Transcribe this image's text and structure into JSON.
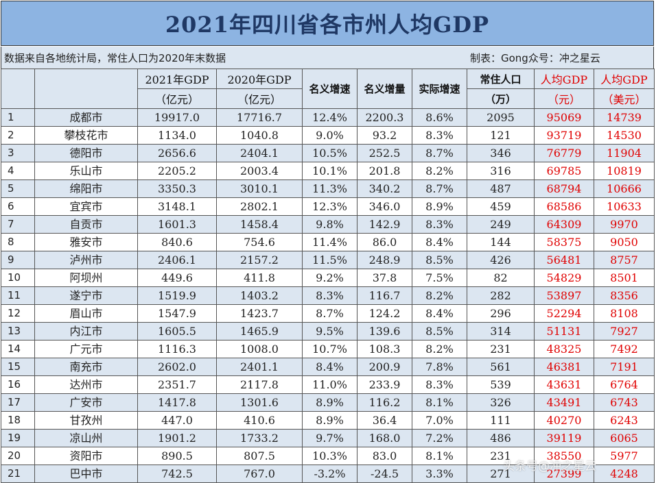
{
  "title": "2021年四川省各市州人均GDP",
  "note": {
    "source": "数据来自各地统计局，常住人口为2020年末数据",
    "credit": "制表：Gong众号：冲之星云"
  },
  "headers": {
    "gdp2021": [
      "2021年GDP",
      "（亿元）"
    ],
    "gdp2020": [
      "2020年GDP",
      "（亿元）"
    ],
    "nominal_growth": "名义增速",
    "nominal_increase": "名义增量",
    "real_growth": "实际增速",
    "population": [
      "常住人口",
      "（万）"
    ],
    "per_capita_cny": [
      "人均GDP",
      "（元）"
    ],
    "per_capita_usd": [
      "人均GDP",
      "（美元）"
    ]
  },
  "rows": [
    [
      "1",
      "成都市",
      "19917.0",
      "17716.7",
      "12.4%",
      "2200.3",
      "8.6%",
      "2095",
      "95069",
      "14739"
    ],
    [
      "2",
      "攀枝花市",
      "1134.0",
      "1040.8",
      "9.0%",
      "93.2",
      "8.3%",
      "121",
      "93719",
      "14530"
    ],
    [
      "3",
      "德阳市",
      "2656.6",
      "2404.1",
      "10.5%",
      "252.5",
      "8.7%",
      "346",
      "76779",
      "11904"
    ],
    [
      "4",
      "乐山市",
      "2205.2",
      "2003.4",
      "10.1%",
      "201.8",
      "8.2%",
      "316",
      "69785",
      "10819"
    ],
    [
      "5",
      "绵阳市",
      "3350.3",
      "3010.1",
      "11.3%",
      "340.2",
      "8.7%",
      "487",
      "68794",
      "10666"
    ],
    [
      "6",
      "宜宾市",
      "3148.1",
      "2802.1",
      "12.3%",
      "346.0",
      "8.9%",
      "459",
      "68586",
      "10633"
    ],
    [
      "7",
      "自贡市",
      "1601.3",
      "1458.4",
      "9.8%",
      "142.9",
      "8.3%",
      "249",
      "64309",
      "9970"
    ],
    [
      "8",
      "雅安市",
      "840.6",
      "754.6",
      "11.4%",
      "86.0",
      "8.4%",
      "144",
      "58375",
      "9050"
    ],
    [
      "9",
      "泸州市",
      "2406.1",
      "2157.2",
      "11.5%",
      "248.9",
      "8.5%",
      "426",
      "56481",
      "8757"
    ],
    [
      "10",
      "阿坝州",
      "449.6",
      "411.8",
      "9.2%",
      "37.8",
      "7.5%",
      "82",
      "54829",
      "8501"
    ],
    [
      "11",
      "遂宁市",
      "1519.9",
      "1403.2",
      "8.3%",
      "116.7",
      "8.2%",
      "282",
      "53897",
      "8356"
    ],
    [
      "12",
      "眉山市",
      "1547.9",
      "1423.7",
      "8.7%",
      "124.2",
      "8.4%",
      "296",
      "52294",
      "8108"
    ],
    [
      "13",
      "内江市",
      "1605.5",
      "1465.9",
      "9.5%",
      "139.6",
      "8.5%",
      "314",
      "51131",
      "7927"
    ],
    [
      "14",
      "广元市",
      "1116.3",
      "1008.0",
      "10.7%",
      "108.3",
      "8.2%",
      "231",
      "48325",
      "7492"
    ],
    [
      "15",
      "南充市",
      "2602.0",
      "2401.1",
      "8.4%",
      "200.9",
      "7.8%",
      "561",
      "46381",
      "7191"
    ],
    [
      "16",
      "达州市",
      "2351.7",
      "2117.8",
      "11.0%",
      "233.9",
      "8.3%",
      "539",
      "43631",
      "6764"
    ],
    [
      "17",
      "广安市",
      "1417.8",
      "1301.6",
      "8.9%",
      "116.2",
      "8.1%",
      "326",
      "43491",
      "6743"
    ],
    [
      "18",
      "甘孜州",
      "447.0",
      "410.6",
      "8.9%",
      "36.4",
      "7.0%",
      "111",
      "40270",
      "6243"
    ],
    [
      "19",
      "凉山州",
      "1901.2",
      "1733.2",
      "9.7%",
      "168.0",
      "7.2%",
      "486",
      "39119",
      "6065"
    ],
    [
      "20",
      "资阳市",
      "890.5",
      "807.5",
      "10.3%",
      "83.0",
      "8.1%",
      "231",
      "38550",
      "5977"
    ],
    [
      "21",
      "巴中市",
      "742.5",
      "767.0",
      "-3.2%",
      "-24.5",
      "3.3%",
      "271",
      "27399",
      "4248"
    ]
  ],
  "watermark": "头条号@冲之星云"
}
